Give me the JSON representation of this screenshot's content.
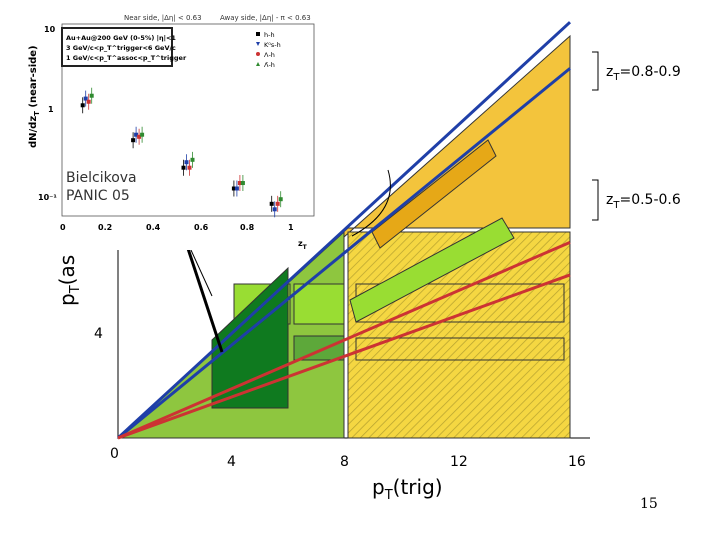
{
  "slide": {
    "page_number": "15"
  },
  "main_chart": {
    "xlabel": "p",
    "xlabel_sub": "T",
    "xlabel_rest": "(trig)",
    "ylabel": "p",
    "ylabel_sub": "T",
    "ylabel_rest": "(as",
    "x_ticks": [
      "0",
      "4",
      "8",
      "12",
      "16"
    ],
    "y_ticks": [
      "4"
    ],
    "zt_labels": [
      {
        "z": "z",
        "sub": "T",
        "text": "=0.8-0.9"
      },
      {
        "z": "z",
        "sub": "T",
        "text": "=0.5-0.6"
      }
    ]
  },
  "inset": {
    "header_left": "Near side, |Δη| < 0.63",
    "header_right": "Away side, |Δη| - π < 0.63",
    "ylabel": "dN/dz",
    "ylabel_sub": "T",
    "ylabel_rest": " (near-side)",
    "xlabel": "z",
    "xlabel_sub": "T",
    "legend_lines": [
      "Au+Au@200 GeV (0-5%) |η|<1",
      "3 GeV/c<p_T^trigger<6 GeV/c",
      "1 GeV/c<p_T^assoc<p_T^trigger"
    ],
    "y_tick_labels": [
      "10",
      "1",
      "10⁻¹"
    ],
    "x_tick_labels": [
      "0",
      "0.2",
      "0.4",
      "0.6",
      "0.8",
      "1"
    ],
    "series_names": [
      "h-h",
      "K⁰s-h",
      "Λ-h",
      "Λ̄-h"
    ],
    "annotation_lines": [
      "Bielcikova",
      "PANIC 05"
    ]
  },
  "chart_data": [
    {
      "type": "scatter",
      "xlabel": "z_T",
      "ylabel": "dN/dz_T (near-side)",
      "xlim": [
        0,
        1
      ],
      "y_scale": "log",
      "legend_position": "top-right",
      "series": [
        {
          "name": "h-h",
          "x": [
            0.1,
            0.3,
            0.5,
            0.7,
            0.85
          ],
          "y": [
            0.8,
            0.25,
            0.1,
            0.05,
            0.03
          ]
        },
        {
          "name": "K⁰s-h",
          "x": [
            0.1,
            0.3,
            0.5,
            0.7,
            0.85
          ],
          "y": [
            1.0,
            0.3,
            0.12,
            0.05,
            0.025
          ]
        },
        {
          "name": "Λ-h",
          "x": [
            0.1,
            0.3,
            0.5,
            0.7,
            0.85
          ],
          "y": [
            0.9,
            0.28,
            0.1,
            0.06,
            0.03
          ]
        },
        {
          "name": "Λ̄-h",
          "x": [
            0.1,
            0.3,
            0.5,
            0.7,
            0.85
          ],
          "y": [
            1.1,
            0.3,
            0.13,
            0.06,
            0.035
          ]
        }
      ]
    },
    {
      "type": "line",
      "xlabel": "pT(trig)",
      "ylabel": "pT(as",
      "xlim": [
        0,
        16
      ],
      "ylim": [
        0,
        16
      ],
      "series": [
        {
          "name": "z_T=0.8-0.9",
          "color": "#1f3fa8",
          "slopes": [
            0.8,
            0.9
          ]
        },
        {
          "name": "z_T=0.5-0.6",
          "color": "#cc3333",
          "slopes": [
            0.5,
            0.6
          ]
        }
      ]
    }
  ],
  "colors": {
    "yellow": "#f3c43c",
    "yellow_hatch_bg": "#e8d24a",
    "light_green": "#8ec63f",
    "bright_green": "#99dd33",
    "dark_green": "#2f8a2f",
    "darkest_green": "#0f7a1f",
    "blue": "#1f3fa8",
    "red": "#cc3333",
    "orange": "#e6a817"
  }
}
